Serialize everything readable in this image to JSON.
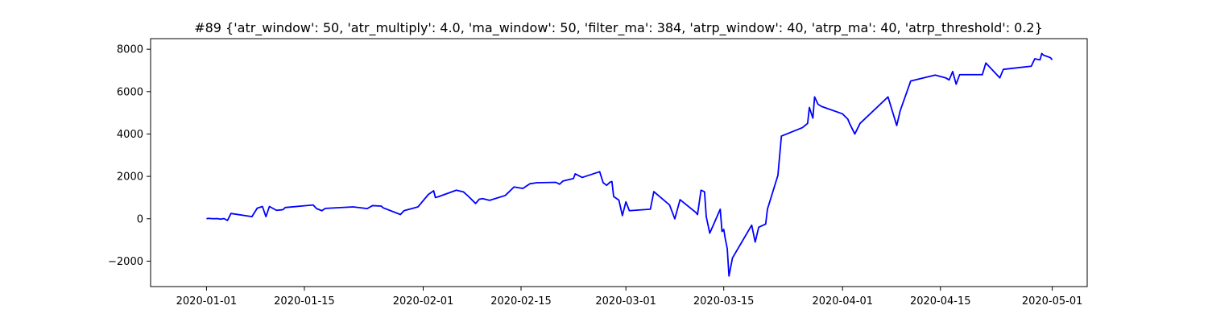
{
  "chart_data": {
    "type": "line",
    "title": "#89 {'atr_window': 50, 'atr_multiply': 4.0, 'ma_window': 50, 'filter_ma': 384, 'atrp_window': 40, 'atrp_ma': 40, 'atrp_threshold': 0.2}",
    "xlabel": "",
    "ylabel": "",
    "grid": false,
    "legend": "none",
    "x_range": [
      "2019-12-24",
      "2020-05-06"
    ],
    "ylim": [
      -3200,
      8500
    ],
    "x_ticks": [
      {
        "date": "2020-01-01",
        "label": "2020-01-01"
      },
      {
        "date": "2020-01-15",
        "label": "2020-01-15"
      },
      {
        "date": "2020-02-01",
        "label": "2020-02-01"
      },
      {
        "date": "2020-02-15",
        "label": "2020-02-15"
      },
      {
        "date": "2020-03-01",
        "label": "2020-03-01"
      },
      {
        "date": "2020-03-15",
        "label": "2020-03-15"
      },
      {
        "date": "2020-04-01",
        "label": "2020-04-01"
      },
      {
        "date": "2020-04-15",
        "label": "2020-04-15"
      },
      {
        "date": "2020-05-01",
        "label": "2020-05-01"
      }
    ],
    "y_ticks": [
      {
        "value": -2000,
        "label": "−2000"
      },
      {
        "value": 0,
        "label": "0"
      },
      {
        "value": 2000,
        "label": "2000"
      },
      {
        "value": 4000,
        "label": "4000"
      },
      {
        "value": 6000,
        "label": "6000"
      },
      {
        "value": 8000,
        "label": "8000"
      }
    ],
    "series": [
      {
        "color": "#0000ff",
        "points": [
          [
            "2020-01-01T00:00",
            0
          ],
          [
            "2020-01-01T06:00",
            20
          ],
          [
            "2020-01-02T00:00",
            0
          ],
          [
            "2020-01-02T12:00",
            10
          ],
          [
            "2020-01-03T00:00",
            -20
          ],
          [
            "2020-01-03T12:00",
            10
          ],
          [
            "2020-01-04T00:00",
            -80
          ],
          [
            "2020-01-04T12:00",
            250
          ],
          [
            "2020-01-07T12:00",
            100
          ],
          [
            "2020-01-08T06:00",
            500
          ],
          [
            "2020-01-09T00:00",
            580
          ],
          [
            "2020-01-09T12:00",
            100
          ],
          [
            "2020-01-10T00:00",
            580
          ],
          [
            "2020-01-11T00:00",
            400
          ],
          [
            "2020-01-11T18:00",
            420
          ],
          [
            "2020-01-12T00:00",
            440
          ],
          [
            "2020-01-12T06:00",
            530
          ],
          [
            "2020-01-16T06:00",
            650
          ],
          [
            "2020-01-16T18:00",
            480
          ],
          [
            "2020-01-17T12:00",
            380
          ],
          [
            "2020-01-18T00:00",
            490
          ],
          [
            "2020-01-22T00:00",
            560
          ],
          [
            "2020-01-24T00:00",
            480
          ],
          [
            "2020-01-24T18:00",
            620
          ],
          [
            "2020-01-26T00:00",
            600
          ],
          [
            "2020-01-26T06:00",
            520
          ],
          [
            "2020-01-28T18:00",
            200
          ],
          [
            "2020-01-29T06:00",
            380
          ],
          [
            "2020-01-31T06:00",
            560
          ],
          [
            "2020-02-01T18:00",
            1150
          ],
          [
            "2020-02-02T12:00",
            1320
          ],
          [
            "2020-02-02T18:00",
            1000
          ],
          [
            "2020-02-03T06:00",
            1050
          ],
          [
            "2020-02-05T18:00",
            1350
          ],
          [
            "2020-02-06T18:00",
            1270
          ],
          [
            "2020-02-07T12:00",
            1050
          ],
          [
            "2020-02-08T12:00",
            720
          ],
          [
            "2020-02-09T00:00",
            920
          ],
          [
            "2020-02-09T12:00",
            950
          ],
          [
            "2020-02-10T12:00",
            870
          ],
          [
            "2020-02-12T18:00",
            1100
          ],
          [
            "2020-02-14T00:00",
            1500
          ],
          [
            "2020-02-15T06:00",
            1430
          ],
          [
            "2020-02-16T06:00",
            1650
          ],
          [
            "2020-02-17T06:00",
            1700
          ],
          [
            "2020-02-20T00:00",
            1720
          ],
          [
            "2020-02-20T12:00",
            1630
          ],
          [
            "2020-02-21T00:00",
            1780
          ],
          [
            "2020-02-22T12:00",
            1900
          ],
          [
            "2020-02-22T18:00",
            2120
          ],
          [
            "2020-02-23T18:00",
            1950
          ],
          [
            "2020-02-26T06:00",
            2220
          ],
          [
            "2020-02-26T18:00",
            1700
          ],
          [
            "2020-02-27T06:00",
            1580
          ],
          [
            "2020-02-27T18:00",
            1730
          ],
          [
            "2020-02-28T00:00",
            1760
          ],
          [
            "2020-02-28T06:00",
            1050
          ],
          [
            "2020-02-29T00:00",
            880
          ],
          [
            "2020-02-29T12:00",
            150
          ],
          [
            "2020-03-01T00:00",
            800
          ],
          [
            "2020-03-01T12:00",
            380
          ],
          [
            "2020-03-04T12:00",
            450
          ],
          [
            "2020-03-05T00:00",
            1280
          ],
          [
            "2020-03-07T06:00",
            650
          ],
          [
            "2020-03-08T00:00",
            0
          ],
          [
            "2020-03-08T18:00",
            900
          ],
          [
            "2020-03-11T00:00",
            300
          ],
          [
            "2020-03-11T06:00",
            200
          ],
          [
            "2020-03-11T18:00",
            1350
          ],
          [
            "2020-03-12T06:00",
            1270
          ],
          [
            "2020-03-12T12:00",
            100
          ],
          [
            "2020-03-13T00:00",
            -680
          ],
          [
            "2020-03-14T12:00",
            450
          ],
          [
            "2020-03-14T18:00",
            -600
          ],
          [
            "2020-03-15T00:00",
            -500
          ],
          [
            "2020-03-15T06:00",
            -1000
          ],
          [
            "2020-03-15T12:00",
            -1400
          ],
          [
            "2020-03-15T18:00",
            -2700
          ],
          [
            "2020-03-16T06:00",
            -1850
          ],
          [
            "2020-03-19T00:00",
            -300
          ],
          [
            "2020-03-19T12:00",
            -1100
          ],
          [
            "2020-03-20T00:00",
            -400
          ],
          [
            "2020-03-21T00:00",
            -250
          ],
          [
            "2020-03-21T06:00",
            450
          ],
          [
            "2020-03-22T18:00",
            2050
          ],
          [
            "2020-03-23T06:00",
            3900
          ],
          [
            "2020-03-26T06:00",
            4300
          ],
          [
            "2020-03-27T00:00",
            4500
          ],
          [
            "2020-03-27T06:00",
            5250
          ],
          [
            "2020-03-27T18:00",
            4750
          ],
          [
            "2020-03-28T00:00",
            5750
          ],
          [
            "2020-03-28T12:00",
            5400
          ],
          [
            "2020-03-29T00:00",
            5300
          ],
          [
            "2020-04-01T00:00",
            4950
          ],
          [
            "2020-04-01T18:00",
            4700
          ],
          [
            "2020-04-02T00:00",
            4500
          ],
          [
            "2020-04-02T18:00",
            4000
          ],
          [
            "2020-04-03T12:00",
            4500
          ],
          [
            "2020-04-07T12:00",
            5750
          ],
          [
            "2020-04-08T18:00",
            4400
          ],
          [
            "2020-04-09T06:00",
            5100
          ],
          [
            "2020-04-10T18:00",
            6500
          ],
          [
            "2020-04-14T06:00",
            6780
          ],
          [
            "2020-04-15T18:00",
            6650
          ],
          [
            "2020-04-16T06:00",
            6550
          ],
          [
            "2020-04-16T18:00",
            6950
          ],
          [
            "2020-04-17T06:00",
            6350
          ],
          [
            "2020-04-17T18:00",
            6800
          ],
          [
            "2020-04-21T00:00",
            6800
          ],
          [
            "2020-04-21T12:00",
            7350
          ],
          [
            "2020-04-23T12:00",
            6650
          ],
          [
            "2020-04-24T00:00",
            7050
          ],
          [
            "2020-04-28T00:00",
            7200
          ],
          [
            "2020-04-28T12:00",
            7550
          ],
          [
            "2020-04-29T06:00",
            7500
          ],
          [
            "2020-04-29T12:00",
            7800
          ],
          [
            "2020-04-29T18:00",
            7720
          ],
          [
            "2020-04-30T18:00",
            7600
          ],
          [
            "2020-05-01T00:00",
            7500
          ]
        ]
      }
    ]
  }
}
